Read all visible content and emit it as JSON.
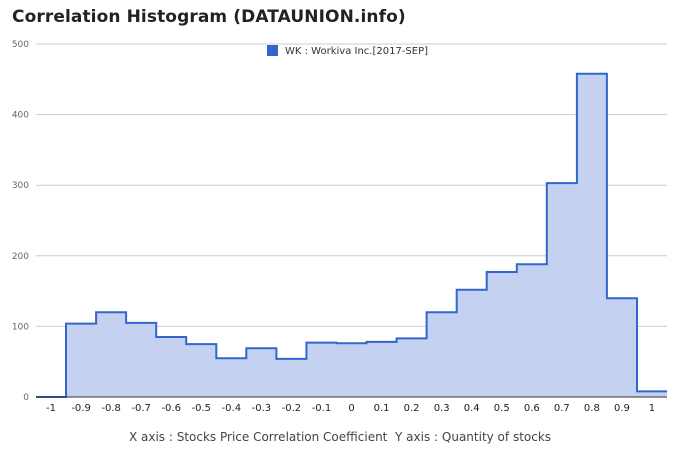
{
  "chart_data": {
    "type": "area",
    "title": "Correlation Histogram (DATAUNION.info)",
    "xlabel": "X axis : Stocks Price Correlation Coefficient",
    "ylabel": "Y axis : Quantity of stocks",
    "legend_position": "top-center",
    "grid": true,
    "colors": {
      "line": "#3366cc",
      "fill": "#c5d1f0"
    },
    "ylim": [
      0,
      500
    ],
    "y_ticks": [
      0,
      100,
      200,
      300,
      400,
      500
    ],
    "xlim": [
      -1.05,
      1.05
    ],
    "x_ticks": [
      -1,
      -0.9,
      -0.8,
      -0.7,
      -0.6,
      -0.5,
      -0.4,
      -0.3,
      -0.2,
      -0.1,
      0,
      0.1,
      0.2,
      0.3,
      0.4,
      0.5,
      0.6,
      0.7,
      0.8,
      0.9,
      1
    ],
    "x_tick_labels": [
      "-1",
      "-0.9",
      "-0.8",
      "-0.7",
      "-0.6",
      "-0.5",
      "-0.4",
      "-0.3",
      "-0.2",
      "-0.1",
      "0",
      "0.1",
      "0.2",
      "0.3",
      "0.4",
      "0.5",
      "0.6",
      "0.7",
      "0.8",
      "0.9",
      "1"
    ],
    "series": [
      {
        "name": "WK : Workiva Inc.[2017-SEP]",
        "x": [
          -1,
          -0.9,
          -0.8,
          -0.7,
          -0.6,
          -0.5,
          -0.4,
          -0.3,
          -0.2,
          -0.1,
          0,
          0.1,
          0.2,
          0.3,
          0.4,
          0.5,
          0.6,
          0.7,
          0.8,
          0.9,
          1
        ],
        "values": [
          0,
          104,
          120,
          105,
          85,
          75,
          55,
          69,
          54,
          77,
          76,
          78,
          83,
          120,
          152,
          177,
          188,
          303,
          458,
          140,
          8
        ]
      }
    ]
  }
}
